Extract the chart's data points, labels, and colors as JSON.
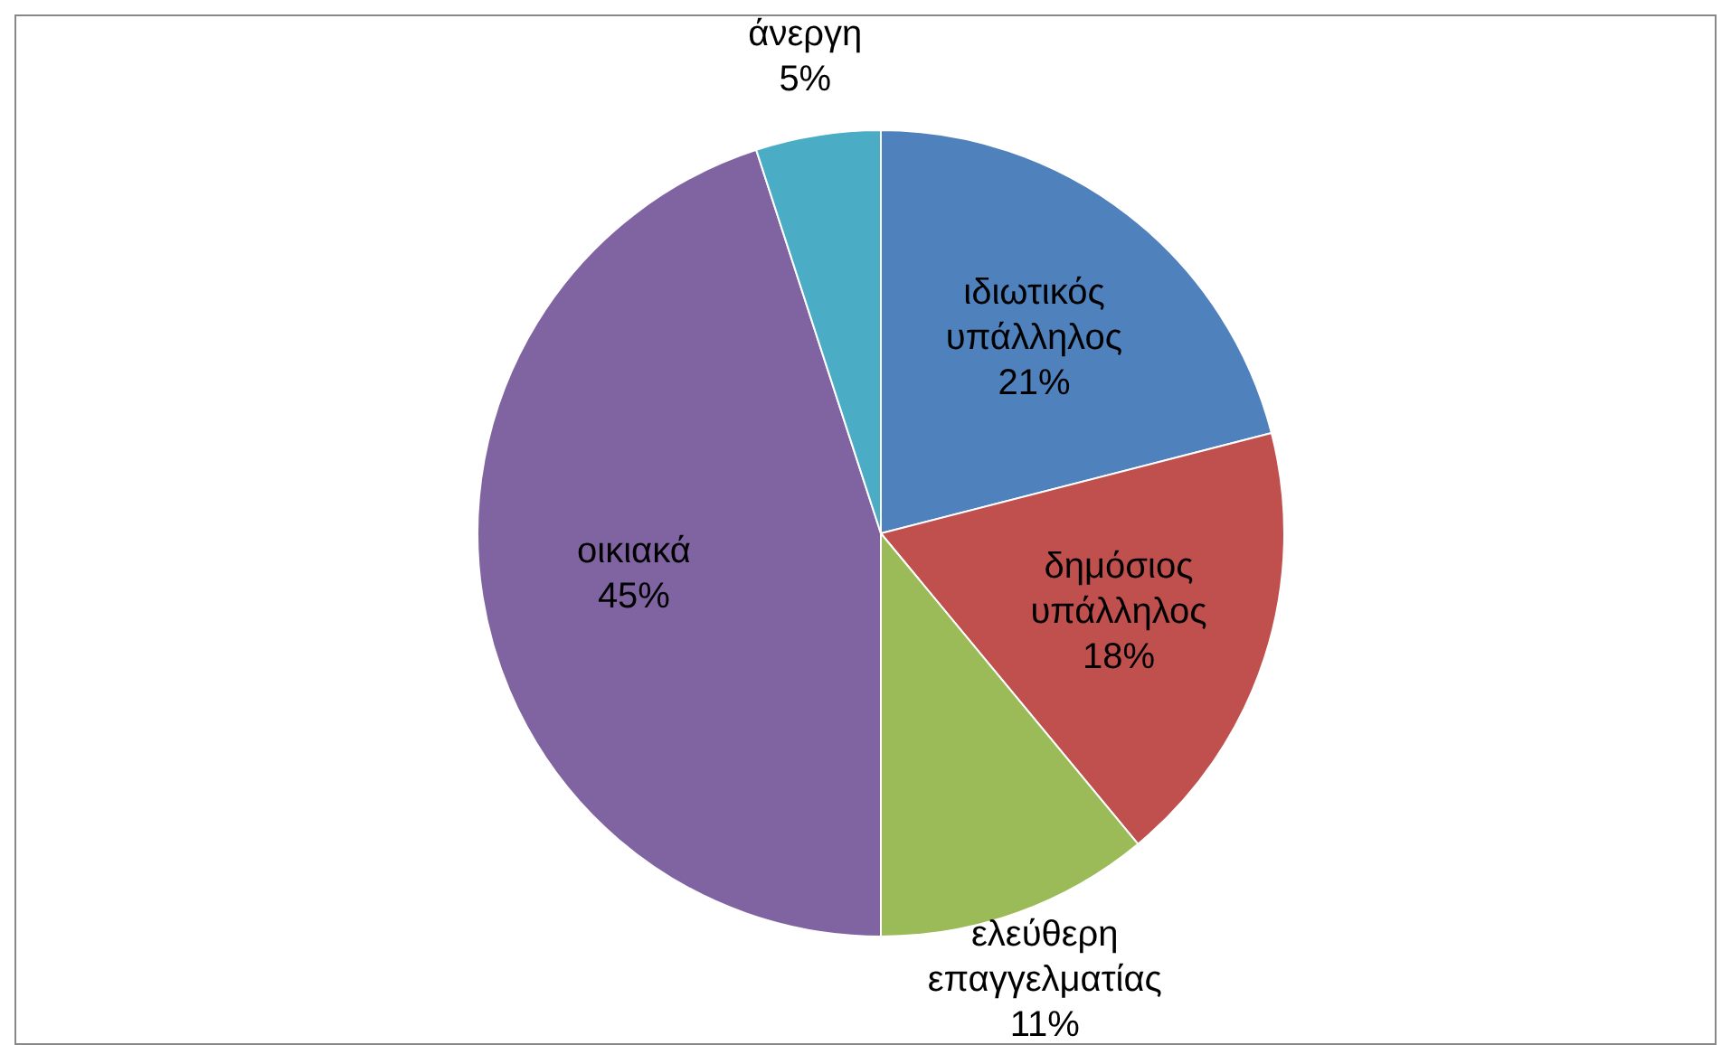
{
  "chart_data": {
    "type": "pie",
    "categories": [
      "ιδιωτικός υπάλληλος",
      "δημόσιος υπάλληλος",
      "ελεύθερη επαγγελματίας",
      "οικιακά",
      "άνεργη"
    ],
    "values": [
      21,
      18,
      11,
      45,
      5
    ],
    "value_labels": [
      "21%",
      "18%",
      "11%",
      "45%",
      "5%"
    ],
    "colors": [
      "#4f81bd",
      "#c0504d",
      "#9bbb59",
      "#8064a2",
      "#4bacc6"
    ]
  }
}
